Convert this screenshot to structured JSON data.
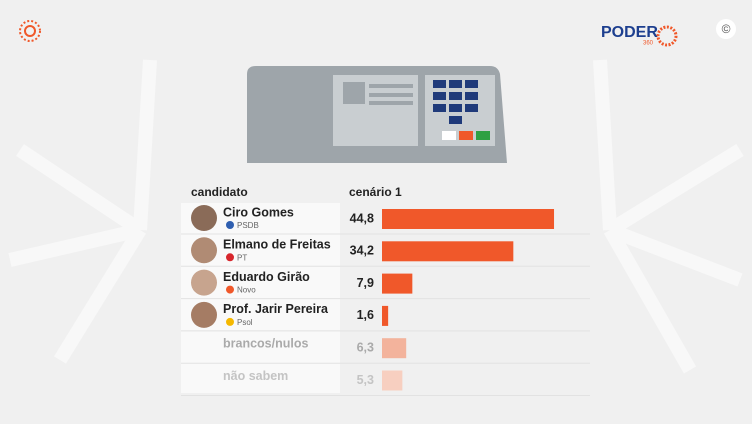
{
  "logo": {
    "name": "PODER",
    "sub": "360"
  },
  "copyright": "©",
  "chart_data": {
    "type": "bar",
    "orientation": "horizontal",
    "category_header": "candidato",
    "categories": [
      "Ciro Gomes",
      "Elmano de Freitas",
      "Eduardo Girão",
      "Prof. Jarir Pereira",
      "brancos/nulos",
      "não sabem"
    ],
    "parties": [
      "PSDB",
      "PT",
      "Novo",
      "Psol",
      null,
      null
    ],
    "series": [
      {
        "name": "cenário 1",
        "color": "#f0582a",
        "values": [
          44.8,
          34.2,
          7.9,
          1.6,
          6.3,
          5.3
        ],
        "value_labels": [
          "44,8",
          "34,2",
          "7,9",
          "1,6",
          "6,3",
          "5,3"
        ],
        "colors": [
          "#f0582a",
          "#f0582a",
          "#f0582a",
          "#f0582a",
          "#f3b39c",
          "#f7cfc0"
        ]
      }
    ]
  }
}
